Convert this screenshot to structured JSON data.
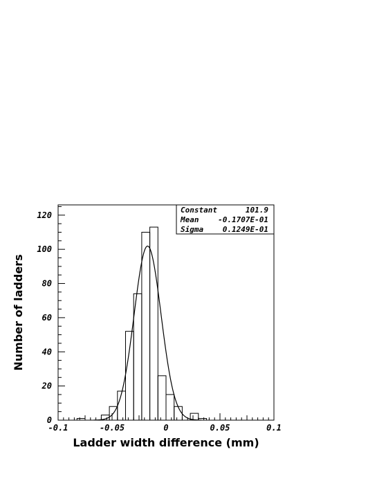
{
  "chart_data": {
    "type": "bar",
    "xlabel": "Ladder width difference (mm)",
    "ylabel": "Number of ladders",
    "xlim": [
      -0.1,
      0.1
    ],
    "ylim": [
      0,
      126
    ],
    "x_ticks": [
      -0.1,
      -0.05,
      0,
      0.05,
      0.1
    ],
    "x_tick_labels": [
      "-0.1",
      "-0.05",
      "0",
      "0.05",
      "0.1"
    ],
    "y_ticks": [
      0,
      20,
      40,
      60,
      80,
      100,
      120
    ],
    "y_tick_labels": [
      "0",
      "20",
      "40",
      "60",
      "80",
      "100",
      "120"
    ],
    "bin_width": 0.0075,
    "histogram": {
      "bin_left_edges": [
        -0.0975,
        -0.09,
        -0.0825,
        -0.075,
        -0.0675,
        -0.06,
        -0.0525,
        -0.045,
        -0.0375,
        -0.03,
        -0.0225,
        -0.015,
        -0.0075,
        0,
        0.0075,
        0.015,
        0.0225,
        0.03,
        0.0375,
        0.045
      ],
      "counts": [
        0,
        0,
        1,
        0,
        0,
        3,
        8,
        17,
        52,
        74,
        110,
        113,
        26,
        15,
        8,
        0,
        4,
        1,
        0,
        0
      ]
    },
    "fit": {
      "function": "gaussian",
      "constant": 101.9,
      "mean": -0.01707,
      "sigma": 0.01249
    },
    "stats_box": [
      {
        "label": "Constant",
        "value": "101.9"
      },
      {
        "label": "Mean",
        "value": "-0.1707E-01"
      },
      {
        "label": "Sigma",
        "value": "0.1249E-01"
      }
    ],
    "grid": false,
    "legend": "top-right stats box"
  }
}
